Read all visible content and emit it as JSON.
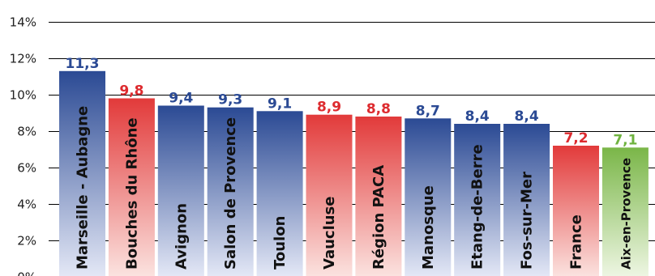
{
  "chart_data": {
    "type": "bar",
    "title": "",
    "xlabel": "",
    "ylabel": "",
    "ylim": [
      0,
      14
    ],
    "yticks": [
      0,
      2,
      4,
      6,
      8,
      10,
      12,
      14
    ],
    "ytick_labels": [
      "0%",
      "2%",
      "4%",
      "6%",
      "8%",
      "10%",
      "12%",
      "14%"
    ],
    "grid": true,
    "legend": "none",
    "categories": [
      "Marseille - Aubagne",
      "Bouches du Rhône",
      "Avignon",
      "Salon de Provence",
      "Toulon",
      "Vaucluse",
      "Région PACA",
      "Manosque",
      "Etang-de-Berre",
      "Fos-sur-Mer",
      "France",
      "Aix-en-Provence"
    ],
    "values": [
      11.3,
      9.8,
      9.4,
      9.3,
      9.1,
      8.9,
      8.8,
      8.7,
      8.4,
      8.4,
      7.2,
      7.1
    ],
    "value_labels": [
      "11,3",
      "9,8",
      "9,4",
      "9,3",
      "9,1",
      "8,9",
      "8,8",
      "8,7",
      "8,4",
      "8,4",
      "7,2",
      "7,1"
    ],
    "bar_color_groups": [
      "blue",
      "red",
      "blue",
      "blue",
      "blue",
      "red",
      "red",
      "blue",
      "blue",
      "blue",
      "red",
      "green"
    ],
    "colors": {
      "blue": {
        "top": "#2b4a94",
        "bottom": "#e4e8f6",
        "label": "#2b4a94"
      },
      "red": {
        "top": "#e23a3a",
        "bottom": "#fbe3e0",
        "label": "#dd2b2f"
      },
      "green": {
        "top": "#7ab648",
        "bottom": "#eef6e3",
        "label": "#6fb33f"
      },
      "grid": "#000000",
      "tick_text": "#222222",
      "category_text": "#111111"
    }
  }
}
